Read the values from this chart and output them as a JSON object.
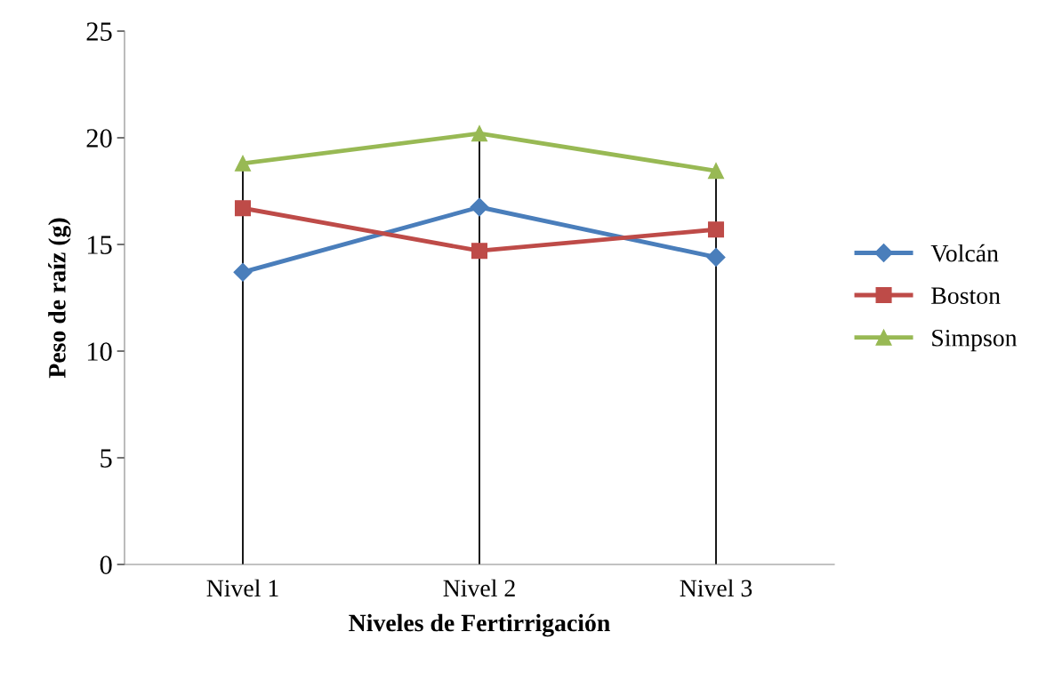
{
  "chart_data": {
    "type": "line",
    "xlabel": "Niveles de Fertirrigación",
    "ylabel": "Peso de raíz (g)",
    "categories": [
      "Nivel 1",
      "Nivel 2",
      "Nivel 3"
    ],
    "series": [
      {
        "name": "Volcán",
        "color": "#4a7ebb",
        "marker": "diamond",
        "values": [
          13.7,
          16.75,
          14.4
        ]
      },
      {
        "name": "Boston",
        "color": "#be4b48",
        "marker": "square",
        "values": [
          16.7,
          14.7,
          15.7
        ]
      },
      {
        "name": "Simpson",
        "color": "#98b954",
        "marker": "triangle",
        "values": [
          18.8,
          20.2,
          18.45
        ]
      }
    ],
    "ref_lines": [
      {
        "axis": "x",
        "value": "Nivel 1",
        "color": "#000000"
      },
      {
        "axis": "x",
        "value": "Nivel 2",
        "color": "#000000"
      },
      {
        "axis": "x",
        "value": "Nivel 3",
        "color": "#000000"
      }
    ],
    "ylim": [
      0,
      25
    ],
    "yticks": [
      0,
      5,
      10,
      15,
      20,
      25
    ],
    "grid": false,
    "legend": "right",
    "line_style": "solid"
  }
}
